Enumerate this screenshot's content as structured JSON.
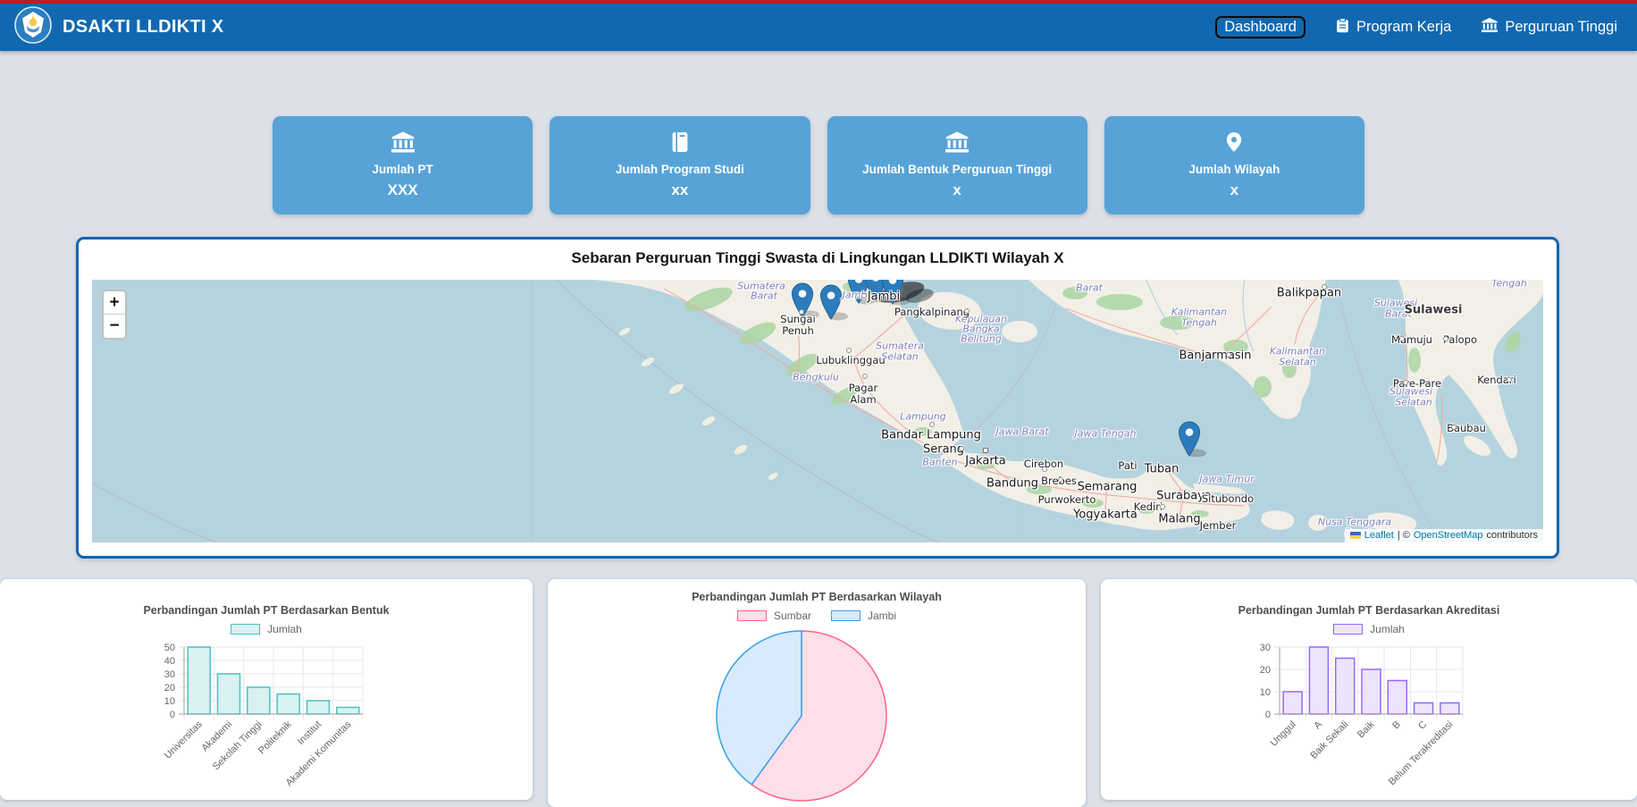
{
  "navbar": {
    "brand": "DSAKTI LLDIKTI X",
    "items": [
      {
        "label": "Dashboard",
        "icon": "none",
        "focused": true
      },
      {
        "label": "Program Kerja",
        "icon": "clipboard-icon"
      },
      {
        "label": "Perguruan Tinggi",
        "icon": "bank-icon"
      }
    ]
  },
  "stat_cards": [
    {
      "label": "Jumlah PT",
      "value": "XXX",
      "icon": "bank-icon"
    },
    {
      "label": "Jumlah Program Studi",
      "value": "xx",
      "icon": "book-icon"
    },
    {
      "label": "Jumlah Bentuk Perguruan Tinggi",
      "value": "x",
      "icon": "bank-icon"
    },
    {
      "label": "Jumlah Wilayah",
      "value": "x",
      "icon": "map-pin-icon"
    }
  ],
  "map_section": {
    "title": "Sebaran Perguruan Tinggi Swasta di Lingkungan LLDIKTI Wilayah X",
    "zoom_in": "+",
    "zoom_out": "−",
    "attribution": {
      "leaflet": "Leaflet",
      "sep": "| ©",
      "osm": "OpenStreetMap",
      "rest": "contributors"
    },
    "places": [
      [
        749,
        7,
        "p",
        "Sumatera"
      ],
      [
        752,
        18,
        "p",
        "Barat"
      ],
      [
        855,
        17,
        "p",
        "Jambi"
      ],
      [
        904,
        74,
        "p",
        "Sumatera"
      ],
      [
        904,
        86,
        "p",
        "Selatan"
      ],
      [
        810,
        109,
        "p",
        "Bengkulu"
      ],
      [
        930,
        153,
        "p",
        "Lampung"
      ],
      [
        949,
        204,
        "p",
        "Banten"
      ],
      [
        1041,
        170,
        "p",
        "Jawa Barat"
      ],
      [
        1134,
        172,
        "p",
        "Jawa Tengah"
      ],
      [
        1270,
        223,
        "p",
        "Jawa Timur"
      ],
      [
        995,
        44,
        "p",
        "Kepulauan"
      ],
      [
        995,
        55,
        "p",
        "Bangka"
      ],
      [
        995,
        66,
        "p",
        "Belitung"
      ],
      [
        1116,
        9,
        "p",
        "Barat"
      ],
      [
        1239,
        36,
        "p",
        "Kalimantan"
      ],
      [
        1239,
        48,
        "p",
        "Tengah"
      ],
      [
        1349,
        80,
        "p",
        "Kalimantan"
      ],
      [
        1349,
        92,
        "p",
        "Selatan"
      ],
      [
        1459,
        26,
        "p",
        "Sulawesi"
      ],
      [
        1462,
        38,
        "p",
        "Barat"
      ],
      [
        1586,
        4,
        "p",
        "Tengah"
      ],
      [
        1476,
        125,
        "p",
        "Sulawesi"
      ],
      [
        1479,
        137,
        "p",
        "Selatan"
      ],
      [
        1413,
        271,
        "p",
        "Nusa Tenggara"
      ],
      [
        1417,
        283,
        "p",
        "Barat"
      ],
      [
        1501,
        34,
        "i",
        "Sulawesi"
      ],
      [
        886,
        19,
        "C",
        "Jambi"
      ],
      [
        939,
        174,
        "C",
        "Bandar Lampung"
      ],
      [
        953,
        190,
        "C",
        "Serang"
      ],
      [
        1000,
        203,
        "C",
        "Jakarta"
      ],
      [
        1030,
        228,
        "C",
        "Bandung"
      ],
      [
        1136,
        232,
        "C",
        "Semarang"
      ],
      [
        1134,
        263,
        "C",
        "Yogyakarta"
      ],
      [
        1197,
        212,
        "C",
        "Tuban"
      ],
      [
        1222,
        242,
        "C",
        "Surabaya"
      ],
      [
        1217,
        268,
        "C",
        "Malang"
      ],
      [
        1257,
        85,
        "C",
        "Banjarmasin"
      ],
      [
        1362,
        15,
        "C",
        "Balikpapan"
      ],
      [
        790,
        44,
        "c",
        "Sungai"
      ],
      [
        790,
        57,
        "c",
        "Penuh"
      ],
      [
        940,
        36,
        "c",
        "Pangkalpinang"
      ],
      [
        849,
        90,
        "c",
        "Lubuklinggau"
      ],
      [
        863,
        121,
        "c",
        "Pagar"
      ],
      [
        863,
        134,
        "c",
        "Alam"
      ],
      [
        1065,
        206,
        "c",
        "Cirebon"
      ],
      [
        1082,
        225,
        "c",
        "Brebes"
      ],
      [
        1091,
        246,
        "c",
        "Purwokerto"
      ],
      [
        1159,
        208,
        "c",
        "Pati"
      ],
      [
        1182,
        254,
        "c",
        "Kediri"
      ],
      [
        1271,
        245,
        "c",
        "Situbondo"
      ],
      [
        1260,
        275,
        "c",
        "Jember"
      ],
      [
        1477,
        67,
        "c",
        "Mamuju"
      ],
      [
        1531,
        67,
        "c",
        "Palopo"
      ],
      [
        1483,
        116,
        "c",
        "Pare-Pare"
      ],
      [
        1572,
        112,
        "c",
        "Kendari"
      ],
      [
        1538,
        166,
        "c",
        "Baubau"
      ]
    ],
    "dots": [
      [
        864,
        18
      ],
      [
        979,
        35
      ],
      [
        847,
        79
      ],
      [
        865,
        108
      ],
      [
        940,
        162
      ],
      [
        973,
        189
      ],
      [
        1066,
        212
      ],
      [
        1084,
        224
      ],
      [
        1198,
        254
      ],
      [
        1272,
        84
      ],
      [
        1379,
        8
      ],
      [
        794,
        36
      ],
      [
        1466,
        66
      ],
      [
        1515,
        66
      ],
      [
        1470,
        115
      ],
      [
        1586,
        112
      ],
      [
        1524,
        165
      ]
    ],
    "square_markers": [
      [
        1000,
        191
      ]
    ],
    "markers": [
      [
        795,
        42
      ],
      [
        827,
        44
      ],
      [
        858,
        26
      ],
      [
        877,
        24
      ],
      [
        896,
        27
      ],
      [
        1228,
        197
      ]
    ]
  },
  "chart_data": [
    {
      "type": "bar",
      "title": "Perbandingan Jumlah PT Berdasarkan Bentuk",
      "legend": "Jumlah",
      "categories": [
        "Universitas",
        "Akademi",
        "Sekolah Tinggi",
        "Politeknik",
        "Institut",
        "Akademi Komunitas"
      ],
      "values": [
        50,
        30,
        20,
        15,
        10,
        5
      ],
      "ylim": [
        0,
        50
      ],
      "ytick_step": 10,
      "colors": {
        "fill": "#d9f2f1",
        "border": "#4bc0c0"
      }
    },
    {
      "type": "pie",
      "title": "Perbandingan Jumlah PT Berdasarkan Wilayah",
      "labels": [
        "Sumbar",
        "Jambi"
      ],
      "values": [
        60,
        40
      ],
      "colors": [
        {
          "fill": "#fcdfe8",
          "border": "#ff6384"
        },
        {
          "fill": "#d8eafb",
          "border": "#36a2eb"
        }
      ]
    },
    {
      "type": "bar",
      "title": "Perbandingan Jumlah PT Berdasarkan Akreditasi",
      "legend": "Jumlah",
      "categories": [
        "Unggul",
        "A",
        "Baik Sekali",
        "Baik",
        "B",
        "C",
        "Belum Terakreditasi"
      ],
      "values": [
        10,
        30,
        25,
        20,
        15,
        5,
        5
      ],
      "ylim": [
        0,
        30
      ],
      "ytick_step": 10,
      "colors": {
        "fill": "#ece4fb",
        "border": "#9966ff"
      }
    }
  ],
  "colors": {
    "navbar": "#1268b0",
    "top_line": "#b02323",
    "stat_card": "#57a3d8",
    "panel_border": "#1165ad",
    "sea": "#b5d3de",
    "marker": "#2c7cbd"
  }
}
